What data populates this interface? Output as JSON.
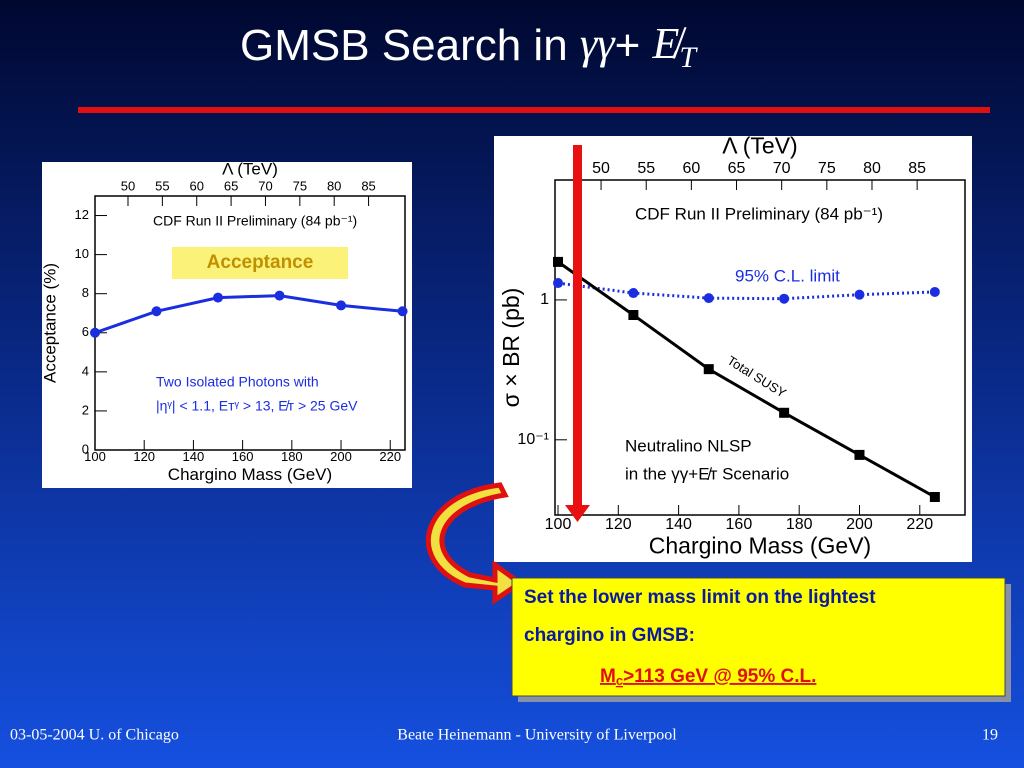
{
  "slide": {
    "title": [
      "GMSB Search in ",
      "γγ",
      "+ ",
      "E̸",
      "T"
    ],
    "callout": {
      "line1": "Set the lower mass limit on the lightest",
      "line2": "chargino in GMSB:",
      "result": [
        "M",
        "c",
        ">113 GeV @ 95% C.L."
      ]
    },
    "footer": {
      "left": "03-05-2004 U. of Chicago",
      "center": "Beate Heinemann - University of Liverpool",
      "right": "19"
    }
  },
  "chart_data": [
    {
      "type": "line",
      "xlabel": "Chargino Mass (GeV)",
      "ylabel": "Acceptance (%)",
      "x2label": "Λ (TeV)",
      "xlim": [
        100,
        226
      ],
      "xticks": [
        100,
        120,
        140,
        160,
        180,
        200,
        220
      ],
      "ylim": [
        0,
        13
      ],
      "yticks": [
        0,
        2,
        4,
        6,
        8,
        10,
        12
      ],
      "x2lim": [
        45.2,
        90.3
      ],
      "x2ticks": [
        50,
        55,
        60,
        65,
        70,
        75,
        80,
        85
      ],
      "annotations": [
        "CDF Run II Preliminary (84 pb⁻¹)",
        "Two Isolated Photons with",
        "|ηᵞ| < 1.1, Eᴛᵞ > 13, E̸ᴛ > 25 GeV"
      ],
      "series": [
        {
          "name": "Acceptance",
          "color": "#1a2ee0",
          "marker": "circle",
          "line_style": "solid",
          "x": [
            100,
            125,
            150,
            175,
            200,
            225
          ],
          "values": [
            6.0,
            7.1,
            7.8,
            7.9,
            7.4,
            7.1
          ]
        }
      ]
    },
    {
      "type": "line",
      "xlabel": "Chargino Mass (GeV)",
      "ylabel": "σ × BR (pb)",
      "x2label": "Λ (TeV)",
      "log_y": true,
      "xlim": [
        99,
        235
      ],
      "xticks": [
        100,
        120,
        140,
        160,
        180,
        200,
        220
      ],
      "ylim": [
        0.029,
        7.2
      ],
      "yticks": [
        {
          "value": 0.1,
          "label": "10⁻¹"
        },
        1
      ],
      "x2lim": [
        44.9,
        90.3
      ],
      "x2ticks": [
        50,
        55,
        60,
        65,
        70,
        75,
        80,
        85
      ],
      "annotations": [
        "CDF Run II Preliminary (84 pb⁻¹)",
        "Neutralino NLSP",
        "in the γγ+E̸ᴛ Scenario"
      ],
      "series": [
        {
          "name": "95% C.L. limit",
          "color": "#1a2ee0",
          "marker": "circle",
          "line_style": "dotted",
          "x": [
            100,
            125,
            150,
            175,
            200,
            225
          ],
          "values": [
            1.32,
            1.12,
            1.03,
            1.02,
            1.09,
            1.14
          ]
        },
        {
          "name": "Total SUSY",
          "color": "#000000",
          "marker": "square",
          "line_style": "solid",
          "x": [
            100,
            125,
            150,
            175,
            200,
            225
          ],
          "values": [
            1.87,
            0.78,
            0.32,
            0.156,
            0.078,
            0.039
          ]
        }
      ]
    }
  ]
}
